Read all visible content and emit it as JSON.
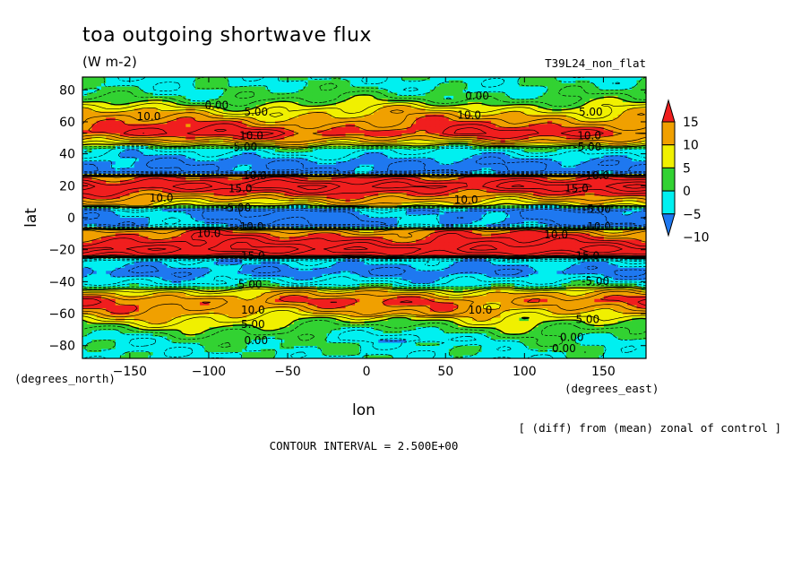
{
  "chart_data": {
    "type": "heatmap",
    "title": "toa outgoing shortwave flux",
    "units": "(W m-2)",
    "experiment": "T39L24_non_flat",
    "xlabel": "lon",
    "ylabel": "lat",
    "x_units_label": "(degrees_east)",
    "y_units_label": "(degrees_north)",
    "xlim": [
      -180,
      177
    ],
    "ylim": [
      -88,
      88
    ],
    "x_ticks": [
      -150,
      -100,
      -50,
      0,
      50,
      100,
      150
    ],
    "y_ticks": [
      -80,
      -60,
      -40,
      -20,
      0,
      20,
      40,
      60,
      80
    ],
    "contour_interval_text": "CONTOUR INTERVAL = 2.500E+00",
    "note": "[ (diff) from (mean) zonal of control ]",
    "colorbar": {
      "ticks": [
        "15",
        "10",
        "5",
        "0",
        "-5",
        "-10"
      ],
      "levels": [
        -10,
        -5,
        0,
        5,
        10,
        15
      ],
      "colors": [
        "#1e78f0",
        "#00f0f0",
        "#32d232",
        "#f0f000",
        "#f0a000",
        "#f01e1e"
      ]
    },
    "zonal_profile": [
      {
        "lat": 88,
        "value": -6
      },
      {
        "lat": 80,
        "value": -5
      },
      {
        "lat": 74,
        "value": -2.5
      },
      {
        "lat": 68,
        "value": 3
      },
      {
        "lat": 62,
        "value": 7
      },
      {
        "lat": 57,
        "value": 10
      },
      {
        "lat": 53,
        "value": 13
      },
      {
        "lat": 49,
        "value": 8
      },
      {
        "lat": 46,
        "value": 3
      },
      {
        "lat": 43,
        "value": -6
      },
      {
        "lat": 34,
        "value": -12
      },
      {
        "lat": 28,
        "value": -12
      },
      {
        "lat": 26,
        "value": 9
      },
      {
        "lat": 20,
        "value": 16
      },
      {
        "lat": 15,
        "value": 11
      },
      {
        "lat": 11,
        "value": 6
      },
      {
        "lat": 8,
        "value": 3
      },
      {
        "lat": 5,
        "value": -11
      },
      {
        "lat": 0,
        "value": -12
      },
      {
        "lat": -5,
        "value": -11
      },
      {
        "lat": -8,
        "value": 8
      },
      {
        "lat": -12,
        "value": 11
      },
      {
        "lat": -16,
        "value": 14
      },
      {
        "lat": -20,
        "value": 17
      },
      {
        "lat": -24,
        "value": 12
      },
      {
        "lat": -26,
        "value": -8
      },
      {
        "lat": -34,
        "value": -12
      },
      {
        "lat": -42,
        "value": -6
      },
      {
        "lat": -46,
        "value": 4
      },
      {
        "lat": -52,
        "value": 10
      },
      {
        "lat": -58,
        "value": 7
      },
      {
        "lat": -63,
        "value": 3
      },
      {
        "lat": -66,
        "value": 1
      },
      {
        "lat": -70,
        "value": -2
      },
      {
        "lat": -76,
        "value": -5
      },
      {
        "lat": -88,
        "value": -6
      }
    ],
    "contour_labels": [
      {
        "text": "0.00",
        "lon": 70,
        "lat": 76
      },
      {
        "text": "0.00",
        "lon": -95,
        "lat": 70
      },
      {
        "text": "5.00",
        "lon": -70,
        "lat": 66
      },
      {
        "text": "5.00",
        "lon": 142,
        "lat": 66
      },
      {
        "text": "10.0",
        "lon": -138,
        "lat": 63
      },
      {
        "text": "10.0",
        "lon": 65,
        "lat": 64
      },
      {
        "text": "10.0",
        "lon": -73,
        "lat": 51
      },
      {
        "text": "10.0",
        "lon": 141,
        "lat": 51
      },
      {
        "text": "-5.00",
        "lon": -78,
        "lat": 44
      },
      {
        "text": "-5.00",
        "lon": 140,
        "lat": 44
      },
      {
        "text": "-10.0",
        "lon": -72,
        "lat": 26
      },
      {
        "text": "-10.0",
        "lon": 145,
        "lat": 26
      },
      {
        "text": "15.0",
        "lon": -80,
        "lat": 18
      },
      {
        "text": "15.0",
        "lon": 133,
        "lat": 18
      },
      {
        "text": "10.0",
        "lon": -130,
        "lat": 12
      },
      {
        "text": "10.0",
        "lon": 63,
        "lat": 11
      },
      {
        "text": "-5.00",
        "lon": -82,
        "lat": 6
      },
      {
        "text": "-5.00",
        "lon": 146,
        "lat": 5
      },
      {
        "text": "-10.0",
        "lon": -74,
        "lat": -6
      },
      {
        "text": "-10.0",
        "lon": 146,
        "lat": -6
      },
      {
        "text": "10.0",
        "lon": -100,
        "lat": -10
      },
      {
        "text": "10.0",
        "lon": 120,
        "lat": -11
      },
      {
        "text": "15.0",
        "lon": -72,
        "lat": -24
      },
      {
        "text": "15.0",
        "lon": 140,
        "lat": -24
      },
      {
        "text": "-5.00",
        "lon": -75,
        "lat": -42
      },
      {
        "text": "-5.00",
        "lon": 145,
        "lat": -40
      },
      {
        "text": "10.0",
        "lon": -72,
        "lat": -58
      },
      {
        "text": "10.0",
        "lon": 72,
        "lat": -58
      },
      {
        "text": "5.00",
        "lon": -72,
        "lat": -67
      },
      {
        "text": "5.00",
        "lon": 140,
        "lat": -64
      },
      {
        "text": "0.00",
        "lon": -70,
        "lat": -77
      },
      {
        "text": "0.00",
        "lon": 130,
        "lat": -75
      },
      {
        "text": "0.00",
        "lon": 125,
        "lat": -82
      }
    ]
  }
}
